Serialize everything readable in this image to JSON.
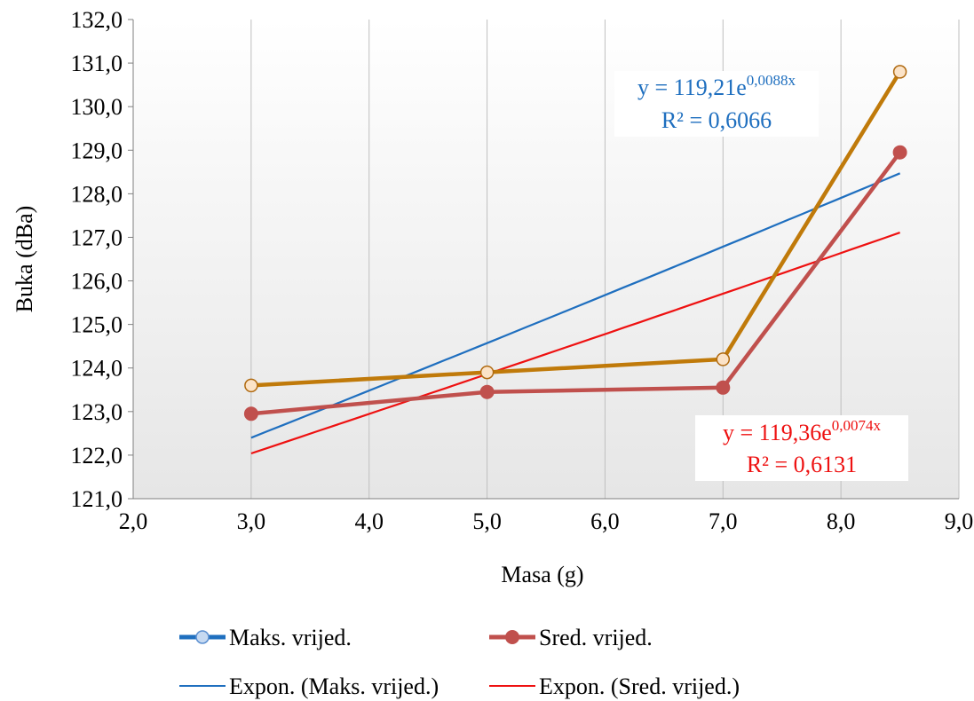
{
  "chart_data": {
    "type": "line",
    "xlabel": "Masa (g)",
    "ylabel": "Buka (dBa)",
    "xlim": [
      2.0,
      9.0
    ],
    "ylim": [
      121.0,
      132.0
    ],
    "x_ticks": [
      "2,0",
      "3,0",
      "4,0",
      "5,0",
      "6,0",
      "7,0",
      "8,0",
      "9,0"
    ],
    "y_ticks": [
      "121,0",
      "122,0",
      "123,0",
      "124,0",
      "125,0",
      "126,0",
      "127,0",
      "128,0",
      "129,0",
      "130,0",
      "131,0",
      "132,0"
    ],
    "grid": "vertical",
    "legend_position": "bottom",
    "x": [
      3.0,
      5.0,
      7.0,
      8.5
    ],
    "series": [
      {
        "name": "Maks. vrijed.",
        "values": [
          123.6,
          123.9,
          124.2,
          130.8
        ],
        "color": "#c07a0a",
        "marker_fill": "#fbe3c8"
      },
      {
        "name": "Sred. vrijed.",
        "values": [
          122.95,
          123.45,
          123.55,
          128.95
        ],
        "color": "#c0504d",
        "marker_fill": "#c0504d"
      }
    ],
    "trendlines": [
      {
        "name": "Expon. (Maks. vrijed.)",
        "type": "exponential",
        "a": 119.21,
        "b": 0.0088,
        "x_range": [
          3.0,
          8.5
        ],
        "color": "#1f6fbf",
        "equation_prefix": "y = 119,21e",
        "equation_exponent": "0,0088x",
        "r2": "R² = 0,6066"
      },
      {
        "name": "Expon. (Sred. vrijed.)",
        "type": "exponential",
        "a": 119.36,
        "b": 0.0074,
        "x_range": [
          3.0,
          8.5
        ],
        "color": "#ee1111",
        "equation_prefix": "y = 119,36e",
        "equation_exponent": "0,0074x",
        "r2": "R² = 0,6131"
      }
    ]
  }
}
